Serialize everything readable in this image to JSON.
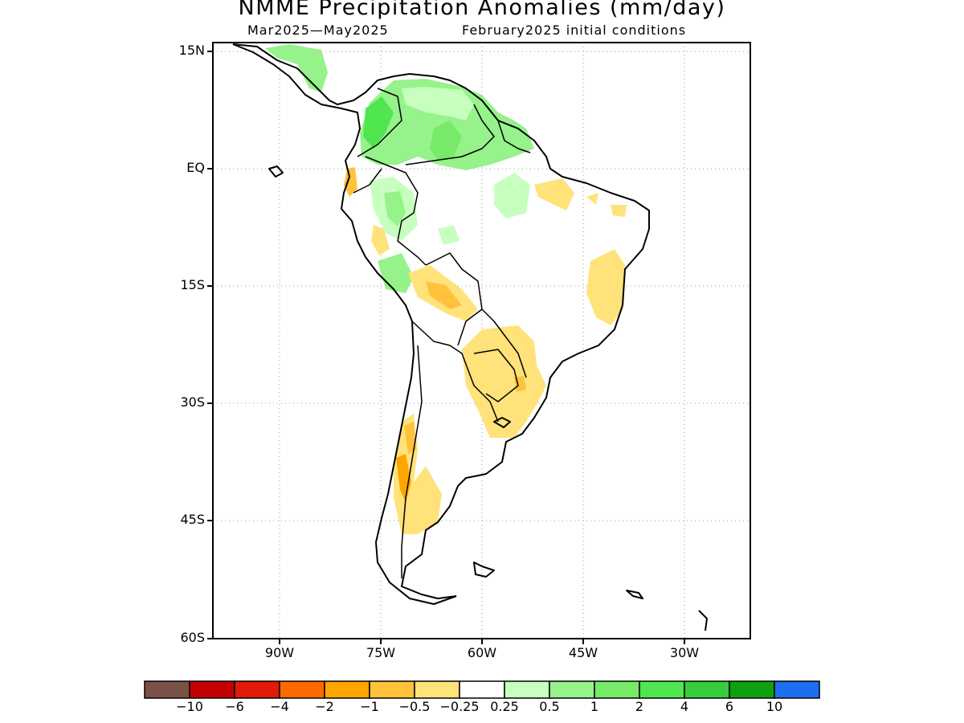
{
  "title": "NMME Precipitation Anomalies (mm/day)",
  "subtitle_left": "Mar2025—May2025",
  "subtitle_right": "February2025 initial conditions",
  "map": {
    "lat_labels": [
      "15N",
      "EQ",
      "15S",
      "30S",
      "45S",
      "60S"
    ],
    "lon_labels": [
      "90W",
      "75W",
      "60W",
      "45W",
      "30W"
    ],
    "lat_range": [
      -60,
      15
    ],
    "lon_range": [
      -100,
      -20
    ]
  },
  "colorbar": {
    "colors": [
      "#7b5046",
      "#c40000",
      "#e21a07",
      "#ff6a00",
      "#ffa500",
      "#ffc23a",
      "#ffe27a",
      "#ffffff",
      "#c6ffbe",
      "#96f28a",
      "#78ea6a",
      "#50e650",
      "#37cc3c",
      "#0fa00f",
      "#1e6ef0"
    ],
    "labels": [
      "−10",
      "−6",
      "−4",
      "−2",
      "−1",
      "−0.5",
      "−0.25",
      "0.25",
      "0.5",
      "1",
      "2",
      "4",
      "6",
      "10"
    ]
  }
}
